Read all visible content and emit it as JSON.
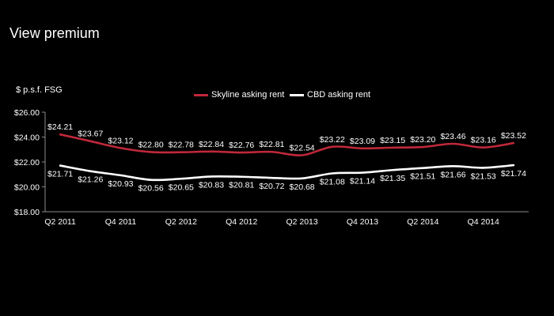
{
  "page": {
    "title": "View premium",
    "unit_label": "$ p.s.f. FSG"
  },
  "colors": {
    "background": "#000000",
    "skyline": "#c0283a",
    "cbd": "#ffffff",
    "axis": "#8c8c8c"
  },
  "chart_data": {
    "type": "line",
    "title": "",
    "xlabel": "",
    "ylabel": "$ p.s.f. FSG",
    "categories": [
      "Q2 2011",
      "Q3 2011",
      "Q4 2011",
      "Q1 2012",
      "Q2 2012",
      "Q3 2012",
      "Q4 2012",
      "Q1 2013",
      "Q2 2013",
      "Q3 2013",
      "Q4 2013",
      "Q1 2014",
      "Q2 2014",
      "Q3 2014",
      "Q4 2014",
      "Q1 2015"
    ],
    "tick_labels": [
      "Q2 2011",
      "",
      "Q4 2011",
      "",
      "Q2 2012",
      "",
      "Q4 2012",
      "",
      "Q2 2013",
      "",
      "Q4 2013",
      "",
      "Q2 2014",
      "",
      "Q4 2014",
      ""
    ],
    "ylim": [
      18,
      26
    ],
    "yticks": [
      18,
      20,
      22,
      24,
      26
    ],
    "ytick_labels": [
      "$18.00",
      "$20.00",
      "$22.00",
      "$24.00",
      "$26.00"
    ],
    "grid": false,
    "legend_position": "top-center",
    "series": [
      {
        "name": "Skyline asking rent",
        "color": "#c0283a",
        "values": [
          24.21,
          23.67,
          23.12,
          22.8,
          22.78,
          22.84,
          22.76,
          22.81,
          22.54,
          23.22,
          23.09,
          23.15,
          23.2,
          23.46,
          23.16,
          23.52
        ],
        "labels": [
          "$24.21",
          "$23.67",
          "$23.12",
          "$22.80",
          "$22.78",
          "$22.84",
          "$22.76",
          "$22.81",
          "$22.54",
          "$23.22",
          "$23.09",
          "$23.15",
          "$23.20",
          "$23.46",
          "$23.16",
          "$23.52"
        ]
      },
      {
        "name": "CBD asking rent",
        "color": "#ffffff",
        "values": [
          21.71,
          21.26,
          20.93,
          20.56,
          20.65,
          20.83,
          20.81,
          20.72,
          20.68,
          21.08,
          21.14,
          21.35,
          21.51,
          21.66,
          21.53,
          21.74
        ],
        "labels": [
          "$21.71",
          "$21.26",
          "$20.93",
          "$20.56",
          "$20.65",
          "$20.83",
          "$20.81",
          "$20.72",
          "$20.68",
          "$21.08",
          "$21.14",
          "$21.35",
          "$21.51",
          "$21.66",
          "$21.53",
          "$21.74"
        ]
      }
    ]
  }
}
